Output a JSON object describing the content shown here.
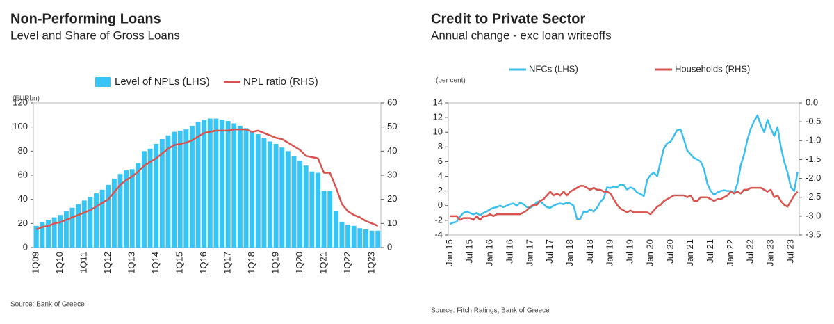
{
  "chart_data": [
    {
      "type": "bar",
      "title": "Non-Performing Loans",
      "subtitle": "Level and Share of Gross Loans",
      "y_label": "(EURbn)",
      "source": "Source: Bank of Greece",
      "legend": "top",
      "grid": false,
      "categories": [
        "1Q09",
        null,
        null,
        null,
        "1Q10",
        null,
        null,
        null,
        "1Q11",
        null,
        null,
        null,
        "1Q12",
        null,
        null,
        null,
        "1Q13",
        null,
        null,
        null,
        "1Q14",
        null,
        null,
        null,
        "1Q15",
        null,
        null,
        null,
        "1Q16",
        null,
        null,
        null,
        "1Q17",
        null,
        null,
        null,
        "1Q18",
        null,
        null,
        null,
        "1Q19",
        null,
        null,
        null,
        "1Q20",
        null,
        null,
        null,
        "1Q21",
        null,
        null,
        null,
        "1Q22",
        null,
        null,
        null,
        "1Q23",
        null
      ],
      "ylim": [
        0,
        120
      ],
      "yticks": [
        0,
        20,
        40,
        60,
        80,
        100,
        120
      ],
      "y2lim": [
        0,
        60
      ],
      "y2ticks": [
        0,
        10,
        20,
        30,
        40,
        50,
        60
      ],
      "series": [
        {
          "name": "Level of NPLs (LHS)",
          "type": "bar",
          "color": "#36c5f4",
          "values": [
            18,
            21,
            23,
            25,
            27,
            30,
            33,
            36,
            39,
            42,
            45,
            48,
            52,
            57,
            61,
            64,
            65,
            70,
            80,
            82,
            86,
            90,
            93,
            96,
            97,
            98,
            101,
            104,
            106,
            107,
            107,
            106,
            105,
            103,
            101,
            99,
            97,
            94,
            91,
            88,
            86,
            83,
            80,
            76,
            72,
            68,
            63,
            62,
            47,
            47,
            30,
            21,
            19,
            18,
            16,
            15,
            14,
            14
          ]
        },
        {
          "name": "NPL ratio (RHS)",
          "type": "line",
          "axis": "y2",
          "color": "#d9534f",
          "values": [
            7.5,
            8.5,
            9,
            10,
            10.5,
            11.5,
            12.5,
            13.5,
            14.5,
            15.5,
            17,
            18.5,
            20,
            23,
            26,
            28,
            29.5,
            31.5,
            34,
            35.5,
            37,
            39,
            41,
            42.5,
            43,
            43.5,
            44.5,
            46,
            47.5,
            48,
            48.5,
            48.5,
            48.5,
            49,
            49,
            49,
            48,
            48.5,
            47.5,
            46.5,
            45.5,
            45,
            43.5,
            42,
            40.5,
            38,
            37.5,
            37,
            31,
            31,
            25,
            18,
            15,
            13.5,
            12.5,
            11,
            10,
            9
          ]
        }
      ]
    },
    {
      "type": "line",
      "title": "Credit to Private Sector",
      "subtitle": "Annual change - exc loan writeoffs",
      "y_label": "(per cent)",
      "source": "Source: Fitch Ratings, Bank of Greece",
      "legend": "top",
      "grid": false,
      "categories": [
        "Jan 15",
        null,
        null,
        null,
        null,
        null,
        "Jul 15",
        null,
        null,
        null,
        null,
        null,
        "Jan 16",
        null,
        null,
        null,
        null,
        null,
        "Jul 16",
        null,
        null,
        null,
        null,
        null,
        "Jan 17",
        null,
        null,
        null,
        null,
        null,
        "Jul 17",
        null,
        null,
        null,
        null,
        null,
        "Jan 18",
        null,
        null,
        null,
        null,
        null,
        "Jul 18",
        null,
        null,
        null,
        null,
        null,
        "Jan 19",
        null,
        null,
        null,
        null,
        null,
        "Jul 19",
        null,
        null,
        null,
        null,
        null,
        "Jan 20",
        null,
        null,
        null,
        null,
        null,
        "Jul 20",
        null,
        null,
        null,
        null,
        null,
        "Jan 21",
        null,
        null,
        null,
        null,
        null,
        "Jul 21",
        null,
        null,
        null,
        null,
        null,
        "Jan 22",
        null,
        null,
        null,
        null,
        null,
        "Jul 22",
        null,
        null,
        null,
        null,
        null,
        "Jan 23",
        null,
        null,
        null,
        null,
        null,
        "Jul 23",
        null,
        null
      ],
      "ylim": [
        -4,
        14
      ],
      "yticks": [
        -4,
        -2,
        0,
        2,
        4,
        6,
        8,
        10,
        12,
        14
      ],
      "y2lim": [
        -3.5,
        0
      ],
      "y2ticks": [
        {
          "value": 0,
          "label": "0.0"
        },
        -0.5,
        {
          "value": -1,
          "label": "-1.0"
        },
        -1.5,
        {
          "value": -2,
          "label": "-2.0"
        },
        -2.5,
        {
          "value": -3,
          "label": "-3.0"
        },
        -3.5
      ],
      "series": [
        {
          "name": "NFCs (LHS)",
          "type": "line",
          "color": "#3bbfef",
          "values": [
            -2.5,
            -2.3,
            -2.2,
            -1.5,
            -1,
            -0.8,
            -1,
            -1.2,
            -1,
            -1.3,
            -1,
            -0.8,
            -0.5,
            -0.3,
            -0.2,
            0,
            -0.2,
            0,
            0.2,
            0.3,
            0,
            0.4,
            0.2,
            -0.2,
            -0.3,
            0,
            0.5,
            0.6,
            0.2,
            -0.2,
            -0.3,
            0,
            0.2,
            0.3,
            0.2,
            0.4,
            0.3,
            0,
            -1.8,
            -1.8,
            -0.8,
            -0.9,
            -0.5,
            -0.8,
            -0.3,
            0.5,
            1,
            2.5,
            2.4,
            2.6,
            2.5,
            2.9,
            2.8,
            2.2,
            2.5,
            2.3,
            1.8,
            1.6,
            1.3,
            3.5,
            4.2,
            4.5,
            4,
            6,
            7.8,
            8.5,
            8.7,
            9.5,
            10.3,
            10.4,
            9,
            7.5,
            7,
            6.5,
            6.3,
            6,
            5,
            3,
            2,
            1.5,
            1.8,
            2,
            2.1,
            2,
            2,
            1.7,
            3,
            5.5,
            7,
            9,
            10.5,
            11.5,
            12.3,
            11,
            10,
            11.7,
            10.5,
            9.5,
            10.7,
            8,
            6,
            4.5,
            2.5,
            2,
            4.6
          ]
        },
        {
          "name": "Households (RHS)",
          "type": "line",
          "axis": "y2",
          "color": "#d9534f",
          "values": [
            -3,
            -3,
            -3,
            -3.1,
            -3.05,
            -3.05,
            -3.05,
            -3.1,
            -3,
            -3.1,
            -3,
            -3,
            -2.95,
            -3,
            -2.95,
            -2.95,
            -2.95,
            -2.95,
            -2.95,
            -2.95,
            -2.95,
            -2.95,
            -2.9,
            -2.85,
            -2.75,
            -2.7,
            -2.7,
            -2.6,
            -2.55,
            -2.45,
            -2.35,
            -2.45,
            -2.4,
            -2.45,
            -2.35,
            -2.45,
            -2.35,
            -2.3,
            -2.25,
            -2.2,
            -2.2,
            -2.25,
            -2.3,
            -2.25,
            -2.3,
            -2.3,
            -2.35,
            -2.35,
            -2.4,
            -2.55,
            -2.7,
            -2.8,
            -2.85,
            -2.9,
            -2.85,
            -2.9,
            -2.9,
            -2.9,
            -2.9,
            -2.9,
            -2.95,
            -2.85,
            -2.75,
            -2.7,
            -2.6,
            -2.55,
            -2.5,
            -2.45,
            -2.45,
            -2.45,
            -2.45,
            -2.5,
            -2.45,
            -2.6,
            -2.6,
            -2.5,
            -2.5,
            -2.5,
            -2.55,
            -2.6,
            -2.55,
            -2.55,
            -2.5,
            -2.45,
            -2.35,
            -2.4,
            -2.35,
            -2.4,
            -2.3,
            -2.3,
            -2.25,
            -2.25,
            -2.25,
            -2.25,
            -2.3,
            -2.35,
            -2.3,
            -2.5,
            -2.45,
            -2.6,
            -2.7,
            -2.75,
            -2.6,
            -2.45,
            -2.35
          ]
        }
      ]
    }
  ]
}
